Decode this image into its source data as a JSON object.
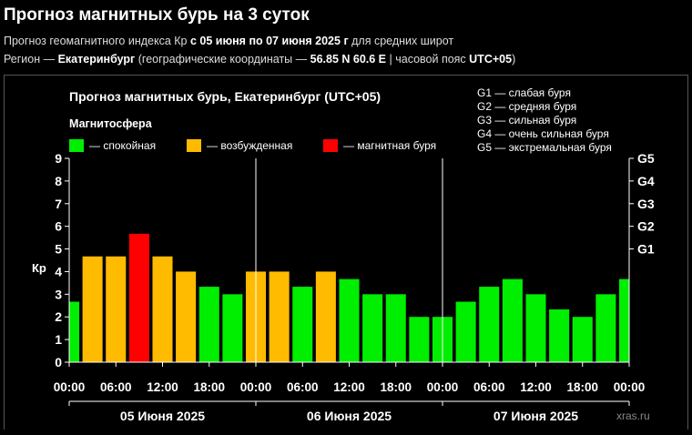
{
  "header": {
    "title": "Прогноз магнитных бурь на 3 суток",
    "line1_prefix": "Прогноз геомагнитного индекса Кр ",
    "line1_range": "с 05 июня по 07 июня 2025 г",
    "line1_suffix": " для средних широт",
    "line2_prefix": "Регион — ",
    "line2_city": "Екатеринбург",
    "line2_mid": " (географические координаты — ",
    "line2_coords": "56.85 N 60.6 E",
    "line2_tz_prefix": " | часовой пояс ",
    "line2_tz": "UTC+05",
    "line2_end": ")"
  },
  "colors": {
    "quiet": "#00ee00",
    "disturbed": "#ffbb00",
    "storm": "#ff0000",
    "grid": "#ffffff"
  },
  "chart_data": {
    "type": "bar",
    "title": "Прогноз магнитных бурь, Екатеринбург (UTC+05)",
    "legend_title": "Магнитосфера",
    "legend": [
      {
        "label": "— спокойная",
        "color": "#00ee00"
      },
      {
        "label": "— возбужденная",
        "color": "#ffbb00"
      },
      {
        "label": "— магнитная буря",
        "color": "#ff0000"
      }
    ],
    "g_legend": [
      "G1 — слабая буря",
      "G2 — средняя буря",
      "G3 — сильная буря",
      "G4 — очень сильная буря",
      "G5 — экстремальная буря"
    ],
    "ylabel": "Кр",
    "ylim": [
      0,
      9
    ],
    "yticks": [
      "0",
      "1",
      "2",
      "3",
      "4",
      "5",
      "6",
      "7",
      "8",
      "9"
    ],
    "right_ticks": [
      {
        "label": "G1",
        "value": 5
      },
      {
        "label": "G2",
        "value": 6
      },
      {
        "label": "G3",
        "value": 7
      },
      {
        "label": "G4",
        "value": 8
      },
      {
        "label": "G5",
        "value": 9
      }
    ],
    "xticks": [
      "00:00",
      "06:00",
      "12:00",
      "18:00",
      "00:00",
      "06:00",
      "12:00",
      "18:00",
      "00:00",
      "06:00",
      "12:00",
      "18:00",
      "00:00"
    ],
    "days": [
      "05 Июня 2025",
      "06 Июня 2025",
      "07 Июня 2025"
    ],
    "values": [
      2.67,
      4.67,
      4.67,
      5.67,
      4.67,
      4.0,
      3.33,
      3.0,
      4.0,
      4.0,
      3.33,
      4.0,
      3.67,
      3.0,
      3.0,
      2.0,
      2.0,
      2.67,
      3.33,
      3.67,
      3.0,
      2.33,
      2.0,
      3.0,
      3.67
    ],
    "levels": [
      "quiet",
      "disturbed",
      "disturbed",
      "storm",
      "disturbed",
      "disturbed",
      "quiet",
      "quiet",
      "disturbed",
      "disturbed",
      "quiet",
      "disturbed",
      "quiet",
      "quiet",
      "quiet",
      "quiet",
      "quiet",
      "quiet",
      "quiet",
      "quiet",
      "quiet",
      "quiet",
      "quiet",
      "quiet",
      "quiet"
    ]
  },
  "watermark": "xras.ru"
}
